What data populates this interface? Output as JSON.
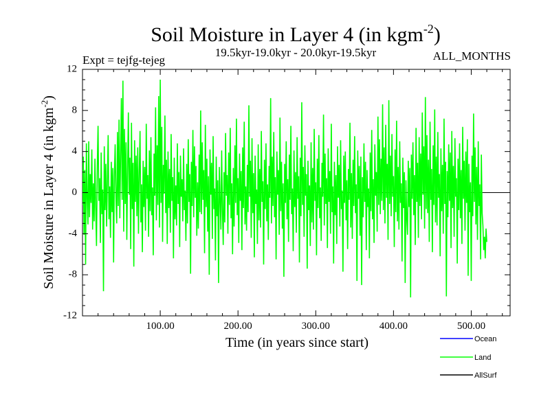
{
  "chart_data": {
    "type": "line",
    "title_main": "Soil Moisture in Layer 4 (in kgm",
    "title_sup": "-2",
    "title_end": ")",
    "expt_label": "Expt = tejfg-tejeg",
    "period_label": "19.5kyr-19.0kyr - 20.0kyr-19.5kyr",
    "months_label": "ALL_MONTHS",
    "xlabel": "Time (in years since start)",
    "ylabel_main": "Soil Moisture in Layer 4 (in kgm",
    "ylabel_sup": "-2",
    "ylabel_end": ")",
    "xlim": [
      0,
      550
    ],
    "ylim": [
      -12,
      12
    ],
    "x_ticks": [
      100,
      200,
      300,
      400,
      500
    ],
    "x_tick_labels": [
      "100.00",
      "200.00",
      "300.00",
      "400.00",
      "500.00"
    ],
    "y_ticks": [
      -12,
      -8,
      -4,
      0,
      4,
      8,
      12
    ],
    "y_tick_labels": [
      "-12",
      "-8",
      "-4",
      "0",
      "4",
      "8",
      "12"
    ],
    "zero_line": 0,
    "legend": [
      {
        "name": "Ocean",
        "color": "#0000ff"
      },
      {
        "name": "Land",
        "color": "#00ff00"
      },
      {
        "name": "AllSurf",
        "color": "#000000"
      }
    ],
    "series": [
      {
        "name": "Land",
        "color": "#00ff00",
        "x_start": 0,
        "x_step": 1,
        "values": [
          -1.2,
          3.5,
          -4.1,
          2.2,
          -7.0,
          4.8,
          -0.5,
          -3.1,
          5.0,
          -2.4,
          1.8,
          -1.0,
          4.2,
          -3.6,
          0.9,
          -2.8,
          3.3,
          -1.5,
          -5.2,
          2.6,
          6.5,
          -0.8,
          1.4,
          -4.9,
          3.9,
          -2.1,
          0.3,
          -9.6,
          4.5,
          -1.7,
          2.8,
          -3.3,
          1.1,
          5.6,
          -2.6,
          0.6,
          -4.4,
          3.0,
          -1.9,
          2.4,
          -6.8,
          1.6,
          4.7,
          -0.4,
          -3.0,
          5.9,
          -1.3,
          7.1,
          -2.5,
          3.7,
          9.2,
          -0.7,
          10.9,
          -3.8,
          6.2,
          -1.1,
          4.9,
          -4.6,
          2.1,
          7.8,
          -0.2,
          3.4,
          -5.5,
          6.8,
          -1.6,
          2.9,
          -7.2,
          5.1,
          -0.9,
          3.6,
          -2.3,
          4.4,
          -4.0,
          1.9,
          6.0,
          -2.9,
          0.8,
          -5.8,
          3.1,
          -1.4,
          2.5,
          -3.7,
          6.7,
          -0.6,
          1.7,
          -4.3,
          4.1,
          -1.8,
          5.4,
          -2.2,
          0.5,
          -6.1,
          3.8,
          -0.3,
          8.3,
          -2.7,
          4.6,
          -1.2,
          9.4,
          -3.4,
          11.0,
          -1.0,
          6.4,
          -4.8,
          2.7,
          -0.1,
          7.5,
          -2.0,
          3.2,
          -5.0,
          4.0,
          -1.5,
          2.3,
          -3.9,
          5.7,
          -0.8,
          1.5,
          -6.4,
          3.4,
          -2.6,
          0.7,
          -3.2,
          4.8,
          -1.1,
          2.0,
          -5.3,
          3.6,
          -0.4,
          1.3,
          -2.8,
          4.3,
          -1.7,
          0.2,
          -4.7,
          2.8,
          -3.0,
          5.2,
          -0.9,
          1.8,
          -7.9,
          3.0,
          -1.3,
          6.1,
          -2.4,
          4.5,
          -0.5,
          2.6,
          -4.2,
          1.0,
          -3.5,
          3.7,
          -1.9,
          8.0,
          -2.1,
          4.9,
          -0.7,
          2.2,
          -5.9,
          6.6,
          -1.4,
          3.3,
          -3.8,
          1.6,
          -8.0,
          4.2,
          -0.2,
          2.9,
          -4.5,
          5.5,
          -1.6,
          0.4,
          -6.6,
          3.5,
          -2.3,
          1.2,
          -8.8,
          2.5,
          -0.6,
          -3.6,
          4.1,
          -1.8,
          -5.1,
          2.0,
          -2.9,
          5.8,
          -0.3,
          1.7,
          -4.0,
          3.9,
          -1.2,
          6.3,
          -2.5,
          0.9,
          -6.0,
          2.4,
          -3.3,
          4.6,
          -1.0,
          7.2,
          -2.2,
          1.4,
          -4.9,
          3.8,
          -0.8,
          2.1,
          -5.6,
          4.4,
          -1.5,
          6.9,
          -3.1,
          0.6,
          -3.7,
          2.7,
          -1.9,
          8.5,
          -0.4,
          3.1,
          -4.4,
          5.3,
          -2.0,
          1.9,
          -6.3,
          3.6,
          -1.1,
          0.3,
          -5.0,
          4.7,
          -2.7,
          2.3,
          -3.4,
          6.0,
          -0.9,
          1.1,
          -7.0,
          3.2,
          -1.6,
          4.8,
          -2.8,
          0.8,
          -4.6,
          2.6,
          -0.5,
          9.2,
          -3.0,
          3.5,
          -1.3,
          5.9,
          -2.4,
          1.5,
          -6.5,
          4.0,
          -0.2,
          2.2,
          -4.1,
          7.3,
          -1.8,
          3.0,
          -3.5,
          0.9,
          -8.2,
          2.8,
          -1.0,
          5.0,
          -2.6,
          1.3,
          -4.8,
          3.7,
          -0.7,
          6.5,
          -2.1,
          0.4,
          -5.7,
          4.1,
          -1.4,
          2.0,
          -3.9,
          5.4,
          -0.6,
          1.6,
          -6.8,
          3.4,
          -2.3,
          8.8,
          -1.2,
          2.5,
          -4.3,
          4.6,
          -0.3,
          1.8,
          -7.4,
          3.1,
          -1.7,
          0.7,
          -5.2,
          4.9,
          -2.9,
          2.4,
          -3.6,
          6.2,
          -0.8,
          1.0,
          -6.1,
          3.3,
          -1.5,
          5.6,
          -2.5,
          0.5,
          -4.7,
          2.9,
          -0.4,
          7.6,
          -3.2,
          3.8,
          -1.1,
          1.4,
          -5.4,
          4.3,
          -0.9,
          2.1,
          -4.0,
          6.7,
          -1.9,
          0.6,
          -6.9,
          3.0,
          -2.2,
          1.7,
          -5.0,
          4.5,
          -0.5,
          2.7,
          -3.3,
          5.1,
          -1.6,
          0.2,
          -7.7,
          3.6,
          -1.0,
          4.0,
          -2.7,
          1.2,
          -5.5,
          2.3,
          -0.7,
          6.8,
          -3.4,
          1.9,
          -4.5,
          3.2,
          -1.3,
          5.5,
          -2.0,
          0.8,
          -8.6,
          4.1,
          -0.6,
          2.6,
          -4.2,
          3.5,
          -9.0,
          1.5,
          -2.4,
          4.8,
          -0.9,
          3.0,
          -5.6,
          2.2,
          -1.4,
          0.4,
          -6.4,
          3.9,
          -1.8,
          6.1,
          -2.6,
          1.3,
          -4.9,
          4.7,
          -0.3,
          2.0,
          -3.8,
          7.4,
          -1.2,
          5.2,
          -2.1,
          3.3,
          -0.8,
          8.6,
          -1.7,
          4.4,
          -3.0,
          6.6,
          -0.5,
          2.8,
          -4.6,
          9.0,
          -1.1,
          3.6,
          -2.3,
          5.7,
          -0.4,
          1.6,
          -5.3,
          4.2,
          -1.9,
          7.0,
          -2.8,
          2.5,
          -3.6,
          5.0,
          -1.0,
          0.9,
          -6.7,
          3.4,
          -1.5,
          2.0,
          -8.8,
          1.2,
          -2.5,
          -4.1,
          3.1,
          -1.4,
          2.4,
          -10.2,
          3.7,
          -0.6,
          4.9,
          -2.2,
          1.7,
          -5.1,
          6.3,
          -0.9,
          2.9,
          -4.4,
          5.4,
          -1.3,
          3.8,
          -2.6,
          7.8,
          -0.2,
          4.5,
          -3.5,
          9.3,
          -1.6,
          5.6,
          -2.0,
          3.2,
          -4.8,
          6.9,
          -0.7,
          2.3,
          -5.8,
          4.6,
          -1.2,
          8.1,
          -2.9,
          3.5,
          -3.2,
          5.9,
          -0.5,
          1.8,
          -6.2,
          4.3,
          -1.8,
          2.7,
          -4.0,
          7.2,
          -1.1,
          3.0,
          -10.1,
          2.1,
          -2.4,
          4.7,
          -0.8,
          3.9,
          -5.4,
          6.0,
          -1.5,
          2.6,
          -4.3,
          5.3,
          -0.4,
          1.4,
          -6.9,
          3.3,
          -1.7,
          4.8,
          -2.5,
          2.2,
          -5.0,
          6.4,
          -0.6,
          3.1,
          -3.7,
          4.0,
          -1.0,
          5.2,
          -8.1,
          2.8,
          -1.9,
          1.0,
          -8.6,
          3.6,
          -2.3,
          7.7,
          -0.9,
          4.4,
          -3.1,
          2.5,
          -4.6,
          5.0,
          -1.3,
          0.8,
          -6.5,
          3.7,
          -2.0,
          -3.2,
          -5.6,
          -4.3,
          -6.4,
          -3.5,
          -4.8
        ]
      }
    ]
  }
}
